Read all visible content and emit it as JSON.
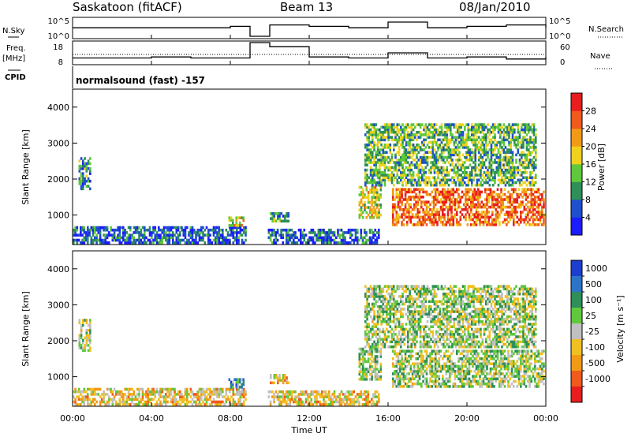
{
  "header": {
    "station": "Saskatoon (fitACF)",
    "beam": "Beam 13",
    "date": "08/Jan/2010",
    "mode": "normalsound (fast) -157"
  },
  "left_labels": {
    "nsky": "N.Sky",
    "freq": "Freq.",
    "freq_unit": "[MHz]",
    "cpid": "CPID"
  },
  "right_labels": {
    "nsearch": "N.Search",
    "nave": "Nave"
  },
  "chart_data": [
    {
      "type": "line",
      "panel": "noise",
      "series": [
        {
          "name": "N.Sky"
        },
        {
          "name": "N.Search"
        }
      ],
      "left_ticks": [
        "10^5",
        "10^0"
      ],
      "right_ticks": [
        "10^5",
        "10^0"
      ],
      "x": [
        0,
        2,
        4,
        6,
        8,
        9,
        10,
        12,
        14,
        16,
        18,
        20,
        22,
        24
      ],
      "values": [
        0.6,
        0.6,
        0.6,
        0.6,
        0.7,
        0.0,
        0.8,
        0.7,
        0.6,
        1.0,
        0.6,
        0.7,
        0.8,
        0.6
      ]
    },
    {
      "type": "line",
      "panel": "frequency",
      "series": [
        {
          "name": "Freq."
        },
        {
          "name": "Nave"
        }
      ],
      "left_ticks": [
        "18",
        "8"
      ],
      "right_ticks": [
        "60",
        "0"
      ],
      "ylim_left": [
        8,
        18
      ],
      "ylim_right": [
        0,
        60
      ],
      "x": [
        0,
        2,
        4,
        6,
        8,
        9,
        10,
        12,
        14,
        16,
        18,
        20,
        22,
        24
      ],
      "values": [
        10.5,
        10.5,
        11,
        10.5,
        10.5,
        18,
        16,
        11,
        10.5,
        13,
        10.5,
        11,
        10,
        11
      ]
    },
    {
      "type": "heatmap",
      "panel": "power",
      "ylabel": "Slant Range [km]",
      "ylim": [
        180,
        4500
      ],
      "y_ticks": [
        1000,
        2000,
        3000,
        4000
      ],
      "xlim": [
        0,
        24
      ],
      "colorbar": {
        "label": "Power [dB]",
        "ticks": [
          4,
          8,
          12,
          16,
          20,
          24,
          28
        ],
        "colors": [
          "#1c1cff",
          "#1e4fcf",
          "#2e8f58",
          "#60c83c",
          "#f0d21e",
          "#f29a16",
          "#f05a1c",
          "#e81e1e"
        ]
      },
      "regions": [
        {
          "t0": 0.0,
          "t1": 8.8,
          "r0": 200,
          "r1": 650,
          "level": 0.2
        },
        {
          "t0": 0.3,
          "t1": 0.9,
          "r0": 1700,
          "r1": 2600,
          "level": 0.3
        },
        {
          "t0": 7.9,
          "t1": 8.7,
          "r0": 680,
          "r1": 950,
          "level": 0.55
        },
        {
          "t0": 9.9,
          "t1": 15.5,
          "r0": 200,
          "r1": 600,
          "level": 0.2
        },
        {
          "t0": 10.0,
          "t1": 10.9,
          "r0": 800,
          "r1": 1050,
          "level": 0.3
        },
        {
          "t0": 14.5,
          "t1": 15.6,
          "r0": 900,
          "r1": 1800,
          "level": 0.55
        },
        {
          "t0": 16.2,
          "t1": 23.9,
          "r0": 700,
          "r1": 1700,
          "level": 0.8
        },
        {
          "t0": 14.8,
          "t1": 23.5,
          "r0": 1800,
          "r1": 3500,
          "level": 0.4
        }
      ]
    },
    {
      "type": "heatmap",
      "panel": "velocity",
      "ylabel": "Slant Range [km]",
      "xlabel": "Time UT",
      "ylim": [
        180,
        4500
      ],
      "y_ticks": [
        1000,
        2000,
        3000,
        4000
      ],
      "xlim": [
        0,
        24
      ],
      "x_ticks": [
        "00:00",
        "04:00",
        "08:00",
        "12:00",
        "16:00",
        "20:00",
        "00:00"
      ],
      "colorbar": {
        "label": "Velocity [m s⁻¹]",
        "ticks": [
          1000,
          500,
          100,
          25,
          -25,
          -100,
          -500,
          -1000
        ],
        "colors": [
          "#1c3ecf",
          "#2c74c8",
          "#2e8f58",
          "#60c83c",
          "#c0c0c0",
          "#f0c020",
          "#f29a16",
          "#f05a1c",
          "#e81e1e"
        ]
      },
      "regions": [
        {
          "t0": 0.0,
          "t1": 8.8,
          "r0": 200,
          "r1": 650,
          "level": 0.6
        },
        {
          "t0": 0.3,
          "t1": 0.9,
          "r0": 1700,
          "r1": 2600,
          "level": 0.45
        },
        {
          "t0": 7.9,
          "t1": 8.7,
          "r0": 680,
          "r1": 950,
          "level": 0.3
        },
        {
          "t0": 9.9,
          "t1": 15.5,
          "r0": 200,
          "r1": 600,
          "level": 0.6
        },
        {
          "t0": 10.0,
          "t1": 10.9,
          "r0": 800,
          "r1": 1050,
          "level": 0.6
        },
        {
          "t0": 14.5,
          "t1": 15.6,
          "r0": 900,
          "r1": 1800,
          "level": 0.45
        },
        {
          "t0": 16.2,
          "t1": 23.9,
          "r0": 700,
          "r1": 1700,
          "level": 0.45
        },
        {
          "t0": 14.8,
          "t1": 23.5,
          "r0": 1800,
          "r1": 3500,
          "level": 0.45
        }
      ]
    }
  ]
}
